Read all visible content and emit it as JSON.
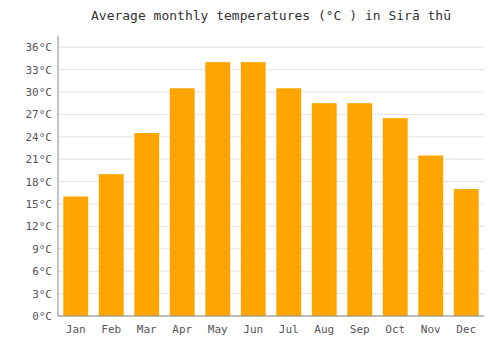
{
  "chart_data": {
    "type": "bar",
    "title": "Average monthly temperatures (°C ) in Sirā thū",
    "categories": [
      "Jan",
      "Feb",
      "Mar",
      "Apr",
      "May",
      "Jun",
      "Jul",
      "Aug",
      "Sep",
      "Oct",
      "Nov",
      "Dec"
    ],
    "values": [
      16.0,
      19.0,
      24.5,
      30.5,
      34.0,
      34.0,
      30.5,
      28.5,
      28.5,
      26.5,
      21.5,
      17.0
    ],
    "color": "#FFA500",
    "ylim": [
      0,
      37.5
    ],
    "yticks": [
      {
        "value": 0,
        "label": "0°C"
      },
      {
        "value": 3,
        "label": "3°C"
      },
      {
        "value": 6,
        "label": "6°C"
      },
      {
        "value": 9,
        "label": "9°C"
      },
      {
        "value": 12,
        "label": "12°C"
      },
      {
        "value": 15,
        "label": "15°C"
      },
      {
        "value": 18,
        "label": "18°C"
      },
      {
        "value": 21,
        "label": "21°C"
      },
      {
        "value": 24,
        "label": "24°C"
      },
      {
        "value": 27,
        "label": "27°C"
      },
      {
        "value": 30,
        "label": "30°C"
      },
      {
        "value": 33,
        "label": "33°C"
      },
      {
        "value": 36,
        "label": "36°C"
      }
    ],
    "grid": true
  }
}
